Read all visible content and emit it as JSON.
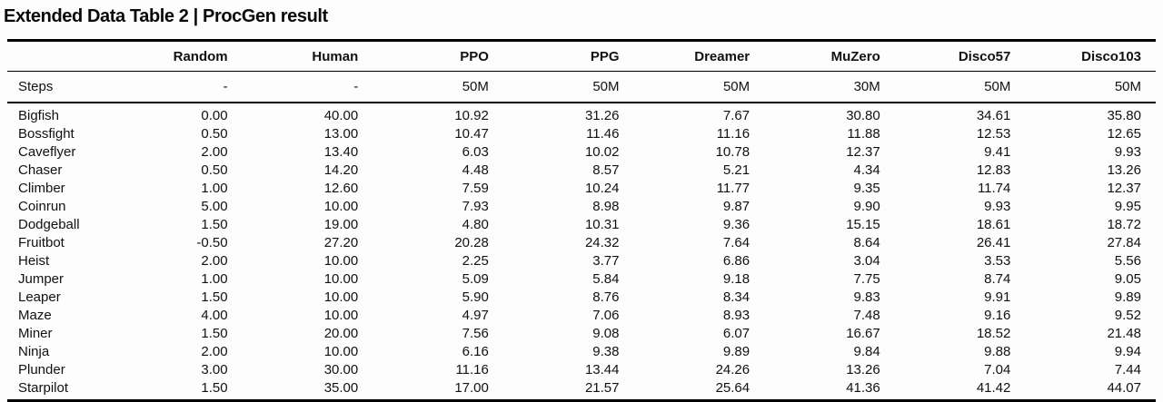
{
  "title": "Extended Data Table 2 | ProcGen result",
  "table": {
    "columns": [
      "Random",
      "Human",
      "PPO",
      "PPG",
      "Dreamer",
      "MuZero",
      "Disco57",
      "Disco103"
    ],
    "steps": {
      "label": "Steps",
      "values": [
        "-",
        "-",
        "50M",
        "50M",
        "50M",
        "30M",
        "50M",
        "50M"
      ]
    },
    "games": [
      {
        "name": "Bigfish",
        "values": [
          "0.00",
          "40.00",
          "10.92",
          "31.26",
          "7.67",
          "30.80",
          "34.61",
          "35.80"
        ],
        "best": 7
      },
      {
        "name": "Bossfight",
        "values": [
          "0.50",
          "13.00",
          "10.47",
          "11.46",
          "11.16",
          "11.88",
          "12.53",
          "12.65"
        ],
        "best": 7
      },
      {
        "name": "Caveflyer",
        "values": [
          "2.00",
          "13.40",
          "6.03",
          "10.02",
          "10.78",
          "12.37",
          "9.41",
          "9.93"
        ],
        "best": 5
      },
      {
        "name": "Chaser",
        "values": [
          "0.50",
          "14.20",
          "4.48",
          "8.57",
          "5.21",
          "4.34",
          "12.83",
          "13.26"
        ],
        "best": 7
      },
      {
        "name": "Climber",
        "values": [
          "1.00",
          "12.60",
          "7.59",
          "10.24",
          "11.77",
          "9.35",
          "11.74",
          "12.37"
        ],
        "best": 7
      },
      {
        "name": "Coinrun",
        "values": [
          "5.00",
          "10.00",
          "7.93",
          "8.98",
          "9.87",
          "9.90",
          "9.93",
          "9.95"
        ],
        "best": 7
      },
      {
        "name": "Dodgeball",
        "values": [
          "1.50",
          "19.00",
          "4.80",
          "10.31",
          "9.36",
          "15.15",
          "18.61",
          "18.72"
        ],
        "best": 7
      },
      {
        "name": "Fruitbot",
        "values": [
          "-0.50",
          "27.20",
          "20.28",
          "24.32",
          "7.64",
          "8.64",
          "26.41",
          "27.84"
        ],
        "best": 7
      },
      {
        "name": "Heist",
        "values": [
          "2.00",
          "10.00",
          "2.25",
          "3.77",
          "6.86",
          "3.04",
          "3.53",
          "5.56"
        ],
        "best": 4
      },
      {
        "name": "Jumper",
        "values": [
          "1.00",
          "10.00",
          "5.09",
          "5.84",
          "9.18",
          "7.75",
          "8.74",
          "9.05"
        ],
        "best": 4
      },
      {
        "name": "Leaper",
        "values": [
          "1.50",
          "10.00",
          "5.90",
          "8.76",
          "8.34",
          "9.83",
          "9.91",
          "9.89"
        ],
        "best": 6
      },
      {
        "name": "Maze",
        "values": [
          "4.00",
          "10.00",
          "4.97",
          "7.06",
          "8.93",
          "7.48",
          "9.16",
          "9.52"
        ],
        "best": 7
      },
      {
        "name": "Miner",
        "values": [
          "1.50",
          "20.00",
          "7.56",
          "9.08",
          "6.07",
          "16.67",
          "18.52",
          "21.48"
        ],
        "best": 7
      },
      {
        "name": "Ninja",
        "values": [
          "2.00",
          "10.00",
          "6.16",
          "9.38",
          "9.89",
          "9.84",
          "9.88",
          "9.94"
        ],
        "best": 7
      },
      {
        "name": "Plunder",
        "values": [
          "3.00",
          "30.00",
          "11.16",
          "13.44",
          "24.26",
          "13.26",
          "7.04",
          "7.44"
        ],
        "best": 4
      },
      {
        "name": "Starpilot",
        "values": [
          "1.50",
          "35.00",
          "17.00",
          "21.57",
          "25.64",
          "41.36",
          "41.42",
          "44.07"
        ],
        "best": 7
      }
    ]
  }
}
